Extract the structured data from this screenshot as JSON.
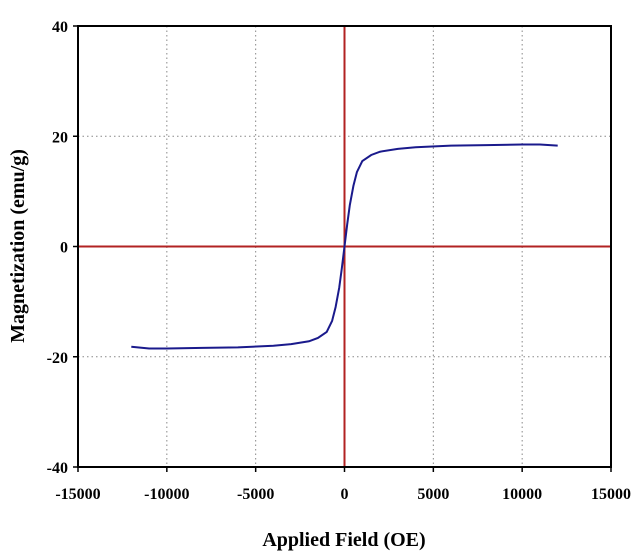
{
  "chart_data": {
    "type": "line",
    "title": "",
    "xlabel": "Applied Field (OE)",
    "ylabel": "Magnetization (emu/g)",
    "xlim": [
      -15000,
      15000
    ],
    "ylim": [
      -40,
      40
    ],
    "xticks": [
      -15000,
      -10000,
      -5000,
      0,
      5000,
      10000,
      15000
    ],
    "yticks": [
      -40,
      -20,
      0,
      20,
      40
    ],
    "xtick_labels": [
      "-15000",
      "-10000",
      "-5000",
      "0",
      "5000",
      "10000",
      "15000"
    ],
    "ytick_labels": [
      "-40",
      "-20",
      "0",
      "20",
      "40"
    ],
    "grid": true,
    "zero_lines_color": "#b22222",
    "series": [
      {
        "color": "#1a1a8c",
        "x": [
          -12000,
          -11000,
          -10000,
          -8000,
          -6000,
          -4000,
          -3000,
          -2000,
          -1500,
          -1000,
          -700,
          -500,
          -300,
          -150,
          0,
          150,
          300,
          500,
          700,
          1000,
          1500,
          2000,
          3000,
          4000,
          6000,
          8000,
          10000,
          11000,
          12000
        ],
        "y": [
          -18.2,
          -18.5,
          -18.5,
          -18.4,
          -18.3,
          -18.0,
          -17.7,
          -17.2,
          -16.6,
          -15.5,
          -13.5,
          -11.0,
          -7.5,
          -4.0,
          0,
          4.0,
          7.5,
          11.0,
          13.5,
          15.5,
          16.6,
          17.2,
          17.7,
          18.0,
          18.3,
          18.4,
          18.5,
          18.5,
          18.3
        ]
      }
    ]
  }
}
